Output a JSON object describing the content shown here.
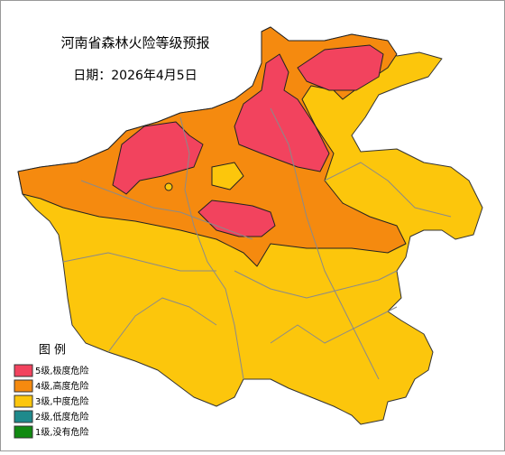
{
  "header": {
    "title": "河南省森林火险等级预报",
    "date": "日期：2026年4月5日"
  },
  "legend": {
    "title": "图 例",
    "items": [
      {
        "label": "5级,极度危险",
        "color": "#f2435e"
      },
      {
        "label": "4级,高度危险",
        "color": "#f58a0f"
      },
      {
        "label": "3级,中度危险",
        "color": "#fcc60c"
      },
      {
        "label": "2级,低度危险",
        "color": "#1e8a8c"
      },
      {
        "label": "1级,没有危险",
        "color": "#118a11"
      }
    ]
  }
}
